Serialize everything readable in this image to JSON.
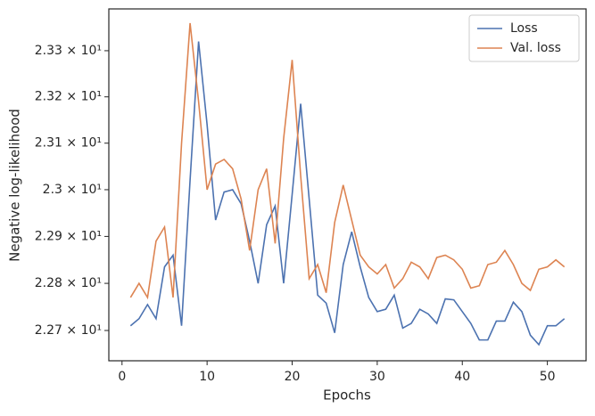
{
  "chart_data": {
    "type": "line",
    "xlabel": "Epochs",
    "ylabel": "Negative log-likelihood",
    "x": [
      1,
      2,
      3,
      4,
      5,
      6,
      7,
      8,
      9,
      10,
      11,
      12,
      13,
      14,
      15,
      16,
      17,
      18,
      19,
      20,
      21,
      22,
      23,
      24,
      25,
      26,
      27,
      28,
      29,
      30,
      31,
      32,
      33,
      34,
      35,
      36,
      37,
      38,
      39,
      40,
      41,
      42,
      43,
      44,
      45,
      46,
      47,
      48,
      49,
      50,
      51,
      52
    ],
    "series": [
      {
        "name": "Loss",
        "color": "#4c72b0",
        "values": [
          22.71,
          22.725,
          22.755,
          22.725,
          22.835,
          22.86,
          22.71,
          23.02,
          23.32,
          23.14,
          22.935,
          22.995,
          23.0,
          22.97,
          22.89,
          22.8,
          22.925,
          22.965,
          22.8,
          22.99,
          23.185,
          22.98,
          22.775,
          22.758,
          22.695,
          22.84,
          22.91,
          22.835,
          22.77,
          22.74,
          22.745,
          22.775,
          22.705,
          22.715,
          22.745,
          22.735,
          22.715,
          22.767,
          22.765,
          22.74,
          22.715,
          22.68,
          22.68,
          22.72,
          22.72,
          22.76,
          22.74,
          22.69,
          22.67,
          22.71,
          22.71,
          22.725
        ]
      },
      {
        "name": "Val. loss",
        "color": "#dd8452",
        "values": [
          22.77,
          22.8,
          22.77,
          22.89,
          22.92,
          22.77,
          23.1,
          23.36,
          23.19,
          23.0,
          23.055,
          23.065,
          23.045,
          22.98,
          22.87,
          23.0,
          23.045,
          22.885,
          23.11,
          23.28,
          23.03,
          22.81,
          22.84,
          22.78,
          22.93,
          23.01,
          22.935,
          22.86,
          22.835,
          22.82,
          22.84,
          22.79,
          22.81,
          22.845,
          22.835,
          22.81,
          22.855,
          22.86,
          22.85,
          22.83,
          22.79,
          22.795,
          22.84,
          22.845,
          22.87,
          22.84,
          22.8,
          22.785,
          22.83,
          22.835,
          22.85,
          22.835
        ]
      }
    ],
    "xlim": [
      -1.55,
      54.55
    ],
    "xticks": [
      0,
      10,
      20,
      30,
      40,
      50
    ],
    "ylim": [
      22.636,
      23.391
    ],
    "ylog": true,
    "yticks": [
      {
        "value": 22.7,
        "label": "2.27 × 10¹"
      },
      {
        "value": 22.8,
        "label": "2.28 × 10¹"
      },
      {
        "value": 22.9,
        "label": "2.29 × 10¹"
      },
      {
        "value": 23.0,
        "label": "2.3 × 10¹"
      },
      {
        "value": 23.1,
        "label": "2.31 × 10¹"
      },
      {
        "value": 23.2,
        "label": "2.32 × 10¹"
      },
      {
        "value": 23.3,
        "label": "2.33 × 10¹"
      }
    ],
    "legend": "upper right",
    "grid": false
  }
}
